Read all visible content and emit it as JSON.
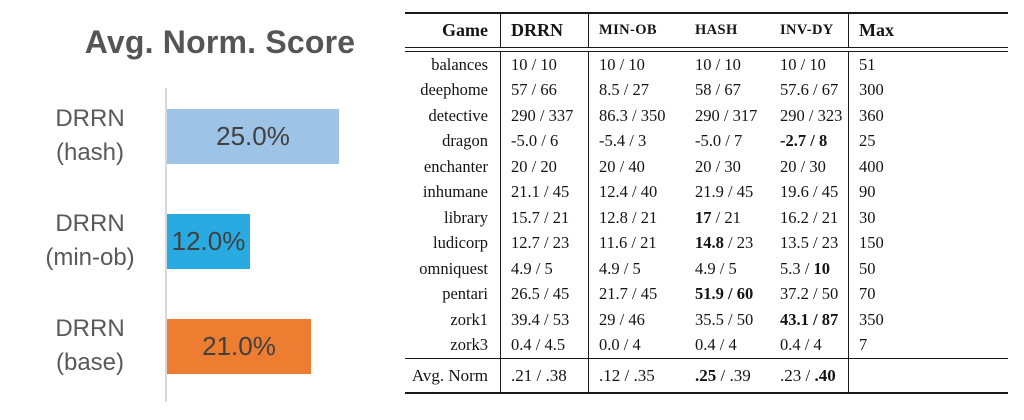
{
  "chart": {
    "title": "Avg. Norm. Score",
    "accent_colors": {
      "hash": "#9dc3e6",
      "min_ob": "#29abe2",
      "base": "#ed7d31"
    },
    "bars": [
      {
        "name": "DRRN (hash)",
        "label_line1": "DRRN",
        "label_line2": "(hash)",
        "value": 25.0,
        "display": "25.0%",
        "color": "#9dc3e6"
      },
      {
        "name": "DRRN (min-ob)",
        "label_line1": "DRRN",
        "label_line2": "(min-ob)",
        "value": 12.0,
        "display": "12.0%",
        "color": "#29abe2"
      },
      {
        "name": "DRRN (base)",
        "label_line1": "DRRN",
        "label_line2": "(base)",
        "value": 21.0,
        "display": "21.0%",
        "color": "#ed7d31"
      }
    ]
  },
  "chart_data": {
    "type": "bar",
    "orientation": "horizontal",
    "title": "Avg. Norm. Score",
    "categories": [
      "DRRN (hash)",
      "DRRN (min-ob)",
      "DRRN (base)"
    ],
    "values": [
      25.0,
      12.0,
      21.0
    ],
    "value_labels": [
      "25.0%",
      "12.0%",
      "21.0%"
    ],
    "colors": [
      "#9dc3e6",
      "#29abe2",
      "#ed7d31"
    ],
    "xlim": [
      0,
      25
    ],
    "grid": false,
    "legend": false
  },
  "table": {
    "columns": [
      "Game",
      "DRRN",
      "MIN-OB",
      "HASH",
      "INV-DY",
      "Max"
    ],
    "rows": [
      {
        "game": "balances",
        "drrn": "10 / 10",
        "minob": "10 / 10",
        "hash": "10 / 10",
        "invdy": "10 / 10",
        "max": "51"
      },
      {
        "game": "deephome",
        "drrn": "57 / 66",
        "minob": "8.5 / 27",
        "hash": "58 / 67",
        "invdy": "57.6 / 67",
        "max": "300"
      },
      {
        "game": "detective",
        "drrn": "290 / 337",
        "minob": "86.3 / 350",
        "hash": "290 / 317",
        "invdy": "290 / 323",
        "max": "360"
      },
      {
        "game": "dragon",
        "drrn": "-5.0 / 6",
        "minob": "-5.4 / 3",
        "hash": "-5.0 / 7",
        "invdy": "**-2.7 / 8**",
        "max": "25"
      },
      {
        "game": "enchanter",
        "drrn": "20 / 20",
        "minob": "20 / 40",
        "hash": "20 / 30",
        "invdy": "20 / 30",
        "max": "400"
      },
      {
        "game": "inhumane",
        "drrn": "21.1 / 45",
        "minob": "12.4 / 40",
        "hash": "21.9 / 45",
        "invdy": "19.6 / 45",
        "max": "90"
      },
      {
        "game": "library",
        "drrn": "15.7 / 21",
        "minob": "12.8 / 21",
        "hash": "**17** / 21",
        "invdy": "16.2 / 21",
        "max": "30"
      },
      {
        "game": "ludicorp",
        "drrn": "12.7 / 23",
        "minob": "11.6 / 21",
        "hash": "**14.8** / 23",
        "invdy": "13.5 / 23",
        "max": "150"
      },
      {
        "game": "omniquest",
        "drrn": "4.9 / 5",
        "minob": "4.9 / 5",
        "hash": "4.9 / 5",
        "invdy": "5.3 / **10**",
        "max": "50"
      },
      {
        "game": "pentari",
        "drrn": "26.5 / 45",
        "minob": "21.7 / 45",
        "hash": "**51.9 / 60**",
        "invdy": "37.2 / 50",
        "max": "70"
      },
      {
        "game": "zork1",
        "drrn": "39.4 / 53",
        "minob": "29 / 46",
        "hash": "35.5 / 50",
        "invdy": "**43.1 / 87**",
        "max": "350"
      },
      {
        "game": "zork3",
        "drrn": "0.4 / 4.5",
        "minob": "0.0 / 4",
        "hash": "0.4 / 4",
        "invdy": "0.4 / 4",
        "max": "7"
      }
    ],
    "footer": {
      "game": "Avg. Norm",
      "drrn": ".21 / .38",
      "minob": ".12 / .35",
      "hash": "**.25** / .39",
      "invdy": ".23 / **.40**",
      "max": ""
    }
  }
}
